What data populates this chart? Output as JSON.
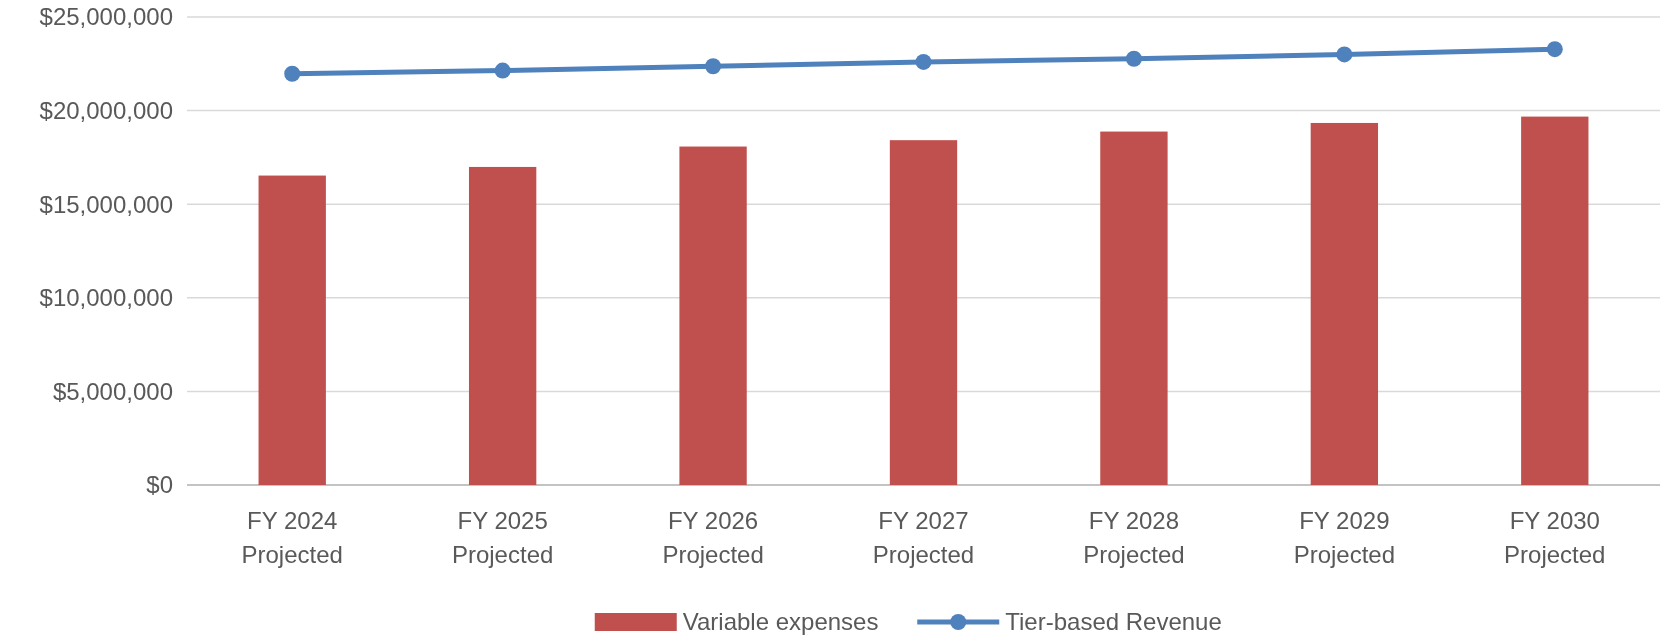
{
  "chart_data": {
    "type": "bar",
    "categories": [
      "FY 2024\nProjected",
      "FY 2025\nProjected",
      "FY 2026\nProjected",
      "FY 2027\nProjected",
      "FY 2028\nProjected",
      "FY 2029\nProjected",
      "FY 2030\nProjected"
    ],
    "series": [
      {
        "name": "Variable expenses",
        "color": "#c0504d",
        "values": [
          16530000,
          16990000,
          18080000,
          18420000,
          18880000,
          19340000,
          19680000
        ]
      },
      {
        "name": "Tier-based Revenue",
        "type": "line",
        "color": "#4f81bd",
        "marker": "circle",
        "values": [
          21970000,
          22140000,
          22370000,
          22600000,
          22770000,
          23000000,
          23280000
        ]
      }
    ],
    "ylim": [
      0,
      25000000
    ],
    "yticks": [
      {
        "value": 0,
        "label": "$0"
      },
      {
        "value": 5000000,
        "label": "$5,000,000"
      },
      {
        "value": 10000000,
        "label": "$10,000,000"
      },
      {
        "value": 15000000,
        "label": "$15,000,000"
      },
      {
        "value": 20000000,
        "label": "$20,000,000"
      },
      {
        "value": 25000000,
        "label": "$25,000,000"
      }
    ],
    "grid": "y",
    "legend": "bottom"
  }
}
